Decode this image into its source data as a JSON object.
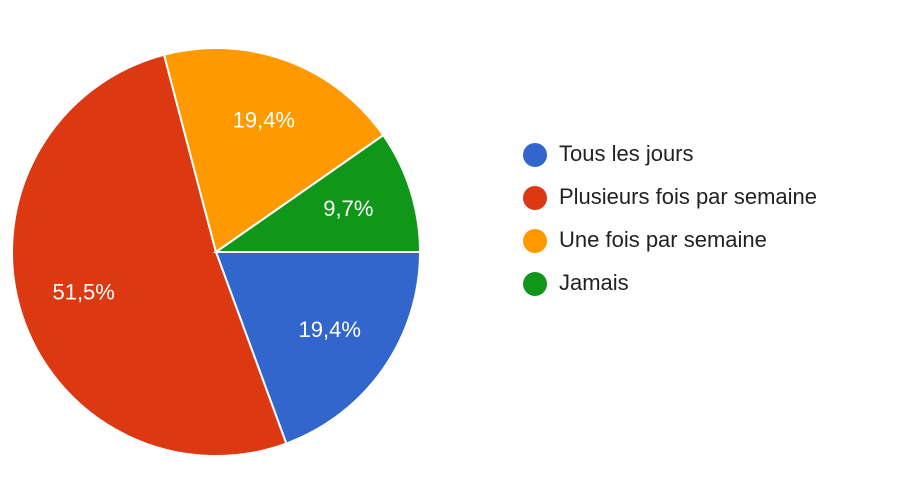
{
  "chart_data": {
    "type": "pie",
    "categories": [
      "Tous les jours",
      "Plusieurs fois par semaine",
      "Une fois par semaine",
      "Jamais"
    ],
    "values": [
      19.4,
      51.5,
      19.4,
      9.7
    ],
    "value_labels": [
      "19,4%",
      "51,5%",
      "19,4%",
      "9,7%"
    ],
    "colors": [
      "#3366cc",
      "#dc3912",
      "#ff9900",
      "#109618"
    ],
    "legend": "right"
  }
}
